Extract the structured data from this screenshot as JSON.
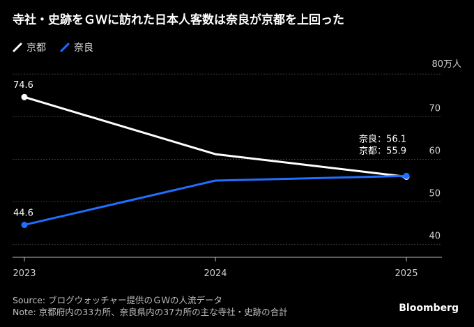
{
  "chart_data": {
    "type": "line",
    "title": "寺社・史跡をＧＷに訪れた日本人客数は奈良が京都を上回った",
    "unit_label": "80万人",
    "x": [
      "2023",
      "2024",
      "2025"
    ],
    "series": [
      {
        "name": "京都",
        "values": [
          74.6,
          61.2,
          55.9
        ],
        "color": "#ffffff"
      },
      {
        "name": "奈良",
        "values": [
          44.6,
          55.0,
          56.1
        ],
        "color": "#1f6fff"
      }
    ],
    "ylim": [
      37,
      82
    ],
    "yticks": [
      40,
      50,
      60,
      70
    ],
    "grid": true,
    "legend_position": "top-left",
    "labels": {
      "start_kyoto": "74.6",
      "start_nara": "44.6",
      "end_nara": "奈良：56.1",
      "end_kyoto": "京都：55.9"
    }
  },
  "footer": {
    "source": "Source: ブログウォッチャー提供のＧＷの人流データ",
    "note": "Note: 京都府内の33カ所、奈良県内の37カ所の主な寺社・史跡の合計"
  },
  "brand": "Bloomberg"
}
